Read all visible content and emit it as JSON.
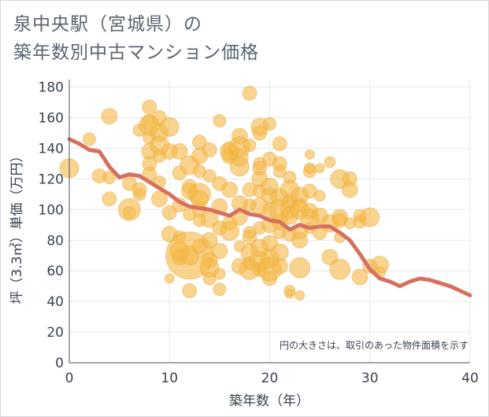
{
  "title": {
    "line1": "泉中央駅（宮城県）の",
    "line2": "築年数別中古マンション価格"
  },
  "note": "円の大きさは、取引のあった物件面積を示す",
  "colors": {
    "bubble": "#f5b844",
    "bubble_stroke": "#e8a93a",
    "line": "#d5715d",
    "grid": "#e6e9ec",
    "axis": "#4a5563"
  },
  "chart_data": {
    "type": "scatter",
    "title": "泉中央駅（宮城県）の築年数別中古マンション価格",
    "xlabel": "築年数（年）",
    "ylabel": "坪（3.3㎡）単価（万円）",
    "xlim": [
      0,
      40
    ],
    "ylim": [
      0,
      185
    ],
    "xticks": [
      0,
      10,
      20,
      30,
      40
    ],
    "yticks": [
      0,
      20,
      40,
      60,
      80,
      100,
      120,
      140,
      160,
      180
    ],
    "grid": true,
    "legend": "none",
    "series": [
      {
        "type": "line",
        "x": [
          0,
          1,
          2,
          3,
          4,
          5,
          6,
          7,
          8,
          9,
          10,
          11,
          12,
          13,
          14,
          15,
          16,
          17,
          18,
          19,
          20,
          21,
          22,
          23,
          24,
          25,
          26,
          27,
          28,
          29,
          30,
          31,
          32,
          33,
          34,
          35,
          36,
          37,
          38,
          39,
          40
        ],
        "y": [
          146,
          143,
          139,
          138,
          128,
          121,
          123,
          122,
          118,
          114,
          110,
          105,
          102,
          101,
          100,
          98,
          96,
          100,
          97,
          96,
          93,
          92,
          87,
          90,
          88,
          89,
          89,
          85,
          80,
          71,
          61,
          55,
          53,
          50,
          53,
          55,
          54,
          52,
          50,
          47,
          44
        ]
      },
      {
        "type": "bubble",
        "points": [
          [
            0,
            127,
            12
          ],
          [
            2,
            146,
            8
          ],
          [
            3,
            122,
            9
          ],
          [
            4,
            161,
            10
          ],
          [
            4,
            107,
            9
          ],
          [
            4,
            121,
            8
          ],
          [
            6,
            117,
            9
          ],
          [
            6,
            98,
            8
          ],
          [
            6,
            100,
            14
          ],
          [
            7,
            113,
            9
          ],
          [
            7,
            110,
            8
          ],
          [
            7,
            152,
            8
          ],
          [
            8,
            167,
            9
          ],
          [
            8,
            157,
            10
          ],
          [
            8,
            155,
            13
          ],
          [
            8,
            147,
            8
          ],
          [
            8,
            138,
            10
          ],
          [
            8,
            130,
            9
          ],
          [
            8,
            123,
            9
          ],
          [
            9,
            160,
            9
          ],
          [
            9,
            150,
            11
          ],
          [
            9,
            142,
            12
          ],
          [
            9,
            135,
            8
          ],
          [
            9,
            118,
            8
          ],
          [
            9,
            107,
            10
          ],
          [
            10,
            154,
            12
          ],
          [
            10,
            138,
            10
          ],
          [
            10,
            98,
            9
          ],
          [
            10,
            84,
            10
          ],
          [
            10,
            55,
            6
          ],
          [
            11,
            138,
            10
          ],
          [
            11,
            124,
            9
          ],
          [
            11,
            103,
            9
          ],
          [
            11,
            82,
            8
          ],
          [
            11,
            73,
            12
          ],
          [
            11,
            69,
            10
          ],
          [
            12,
            129,
            12
          ],
          [
            12,
            115,
            9
          ],
          [
            12,
            112,
            10
          ],
          [
            12,
            97,
            8
          ],
          [
            12,
            70,
            30
          ],
          [
            12,
            47,
            9
          ],
          [
            12,
            70,
            12
          ],
          [
            13,
            144,
            9
          ],
          [
            13,
            135,
            10
          ],
          [
            13,
            125,
            8
          ],
          [
            13,
            110,
            14
          ],
          [
            13,
            107,
            11
          ],
          [
            13,
            100,
            9
          ],
          [
            13,
            93,
            8
          ],
          [
            13,
            76,
            9
          ],
          [
            14,
            139,
            9
          ],
          [
            14,
            122,
            8
          ],
          [
            14,
            94,
            11
          ],
          [
            14,
            80,
            10
          ],
          [
            14,
            67,
            10
          ],
          [
            14,
            62,
            12
          ],
          [
            14,
            55,
            8
          ],
          [
            15,
            158,
            8
          ],
          [
            15,
            117,
            9
          ],
          [
            15,
            102,
            10
          ],
          [
            15,
            88,
            9
          ],
          [
            15,
            73,
            10
          ],
          [
            15,
            48,
            8
          ],
          [
            15,
            58,
            7
          ],
          [
            16,
            140,
            8
          ],
          [
            16,
            135,
            10
          ],
          [
            16,
            113,
            10
          ],
          [
            16,
            91,
            9
          ],
          [
            16,
            86,
            12
          ],
          [
            16,
            138,
            12
          ],
          [
            17,
            148,
            10
          ],
          [
            17,
            141,
            13
          ],
          [
            17,
            134,
            11
          ],
          [
            17,
            128,
            12
          ],
          [
            17,
            104,
            10
          ],
          [
            17,
            95,
            10
          ],
          [
            17,
            76,
            7
          ],
          [
            17,
            63,
            10
          ],
          [
            18,
            176,
            9
          ],
          [
            18,
            142,
            8
          ],
          [
            18,
            113,
            9
          ],
          [
            18,
            103,
            8
          ],
          [
            18,
            85,
            8
          ],
          [
            18,
            82,
            9
          ],
          [
            18,
            72,
            11
          ],
          [
            18,
            61,
            13
          ],
          [
            18,
            65,
            8
          ],
          [
            19,
            154,
            11
          ],
          [
            19,
            150,
            9
          ],
          [
            19,
            130,
            8
          ],
          [
            19,
            127,
            9
          ],
          [
            19,
            120,
            10
          ],
          [
            19,
            112,
            8
          ],
          [
            19,
            102,
            11
          ],
          [
            19,
            88,
            8
          ],
          [
            19,
            75,
            11
          ],
          [
            19,
            66,
            13
          ],
          [
            19,
            61,
            9
          ],
          [
            20,
            156,
            8
          ],
          [
            20,
            133,
            9
          ],
          [
            20,
            115,
            11
          ],
          [
            20,
            109,
            10
          ],
          [
            20,
            100,
            9
          ],
          [
            20,
            90,
            10
          ],
          [
            20,
            78,
            10
          ],
          [
            20,
            68,
            12
          ],
          [
            20,
            61,
            15
          ],
          [
            20,
            55,
            9
          ],
          [
            21,
            143,
            9
          ],
          [
            21,
            130,
            9
          ],
          [
            21,
            125,
            8
          ],
          [
            21,
            108,
            11
          ],
          [
            21,
            100,
            13
          ],
          [
            21,
            92,
            10
          ],
          [
            21,
            85,
            8
          ],
          [
            21,
            72,
            11
          ],
          [
            21,
            63,
            10
          ],
          [
            22,
            121,
            8
          ],
          [
            22,
            113,
            12
          ],
          [
            22,
            105,
            10
          ],
          [
            22,
            100,
            12
          ],
          [
            22,
            96,
            11
          ],
          [
            22,
            84,
            9
          ],
          [
            22,
            47,
            7
          ],
          [
            22,
            45,
            6
          ],
          [
            23,
            109,
            11
          ],
          [
            23,
            103,
            9
          ],
          [
            23,
            100,
            12
          ],
          [
            23,
            86,
            10
          ],
          [
            23,
            80,
            10
          ],
          [
            23,
            62,
            13
          ],
          [
            23,
            44,
            6
          ],
          [
            24,
            136,
            6
          ],
          [
            24,
            127,
            7
          ],
          [
            24,
            125,
            8
          ],
          [
            24,
            112,
            9
          ],
          [
            24,
            99,
            10
          ],
          [
            24,
            94,
            12
          ],
          [
            24,
            88,
            7
          ],
          [
            25,
            127,
            6
          ],
          [
            25,
            109,
            7
          ],
          [
            25,
            96,
            10
          ],
          [
            25,
            85,
            9
          ],
          [
            26,
            131,
            7
          ],
          [
            26,
            91,
            11
          ],
          [
            26,
            69,
            10
          ],
          [
            27,
            120,
            12
          ],
          [
            27,
            95,
            10
          ],
          [
            27,
            93,
            9
          ],
          [
            27,
            82,
            7
          ],
          [
            27,
            61,
            13
          ],
          [
            28,
            120,
            9
          ],
          [
            28,
            113,
            10
          ],
          [
            28,
            91,
            7
          ],
          [
            29,
            96,
            8
          ],
          [
            29,
            92,
            8
          ],
          [
            29,
            56,
            10
          ],
          [
            30,
            95,
            12
          ],
          [
            30,
            63,
            9
          ],
          [
            31,
            64,
            11
          ],
          [
            31,
            59,
            7
          ]
        ]
      }
    ]
  }
}
